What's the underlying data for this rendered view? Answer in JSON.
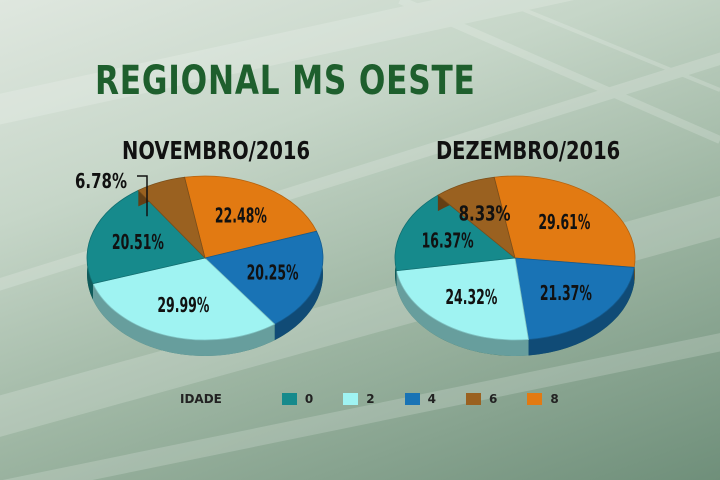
{
  "header": {
    "title": "REGIONAL MS OESTE"
  },
  "legend": {
    "label": "IDADE",
    "items": [
      {
        "name": "0",
        "color": "#168a8c"
      },
      {
        "name": "2",
        "color": "#9ff3f2"
      },
      {
        "name": "4",
        "color": "#1973b5"
      },
      {
        "name": "6",
        "color": "#9a6120"
      },
      {
        "name": "8",
        "color": "#e27a12"
      }
    ]
  },
  "chart_data": [
    {
      "type": "pie",
      "title": "NOVEMBRO/2016",
      "slices": [
        {
          "category": "8",
          "value": 22.48,
          "label": "22.48%"
        },
        {
          "category": "4",
          "value": 20.25,
          "label": "20.25%"
        },
        {
          "category": "2",
          "value": 29.99,
          "label": "29.99%"
        },
        {
          "category": "0",
          "value": 20.51,
          "label": "20.51%"
        },
        {
          "category": "6",
          "value": 6.78,
          "label": "6.78%"
        }
      ]
    },
    {
      "type": "pie",
      "title": "DEZEMBRO/2016",
      "slices": [
        {
          "category": "8",
          "value": 29.61,
          "label": "29.61%"
        },
        {
          "category": "4",
          "value": 21.37,
          "label": "21.37%"
        },
        {
          "category": "2",
          "value": 24.32,
          "label": "24.32%"
        },
        {
          "category": "0",
          "value": 16.37,
          "label": "16.37%"
        },
        {
          "category": "6",
          "value": 8.33,
          "label": "8.33%"
        }
      ]
    }
  ]
}
